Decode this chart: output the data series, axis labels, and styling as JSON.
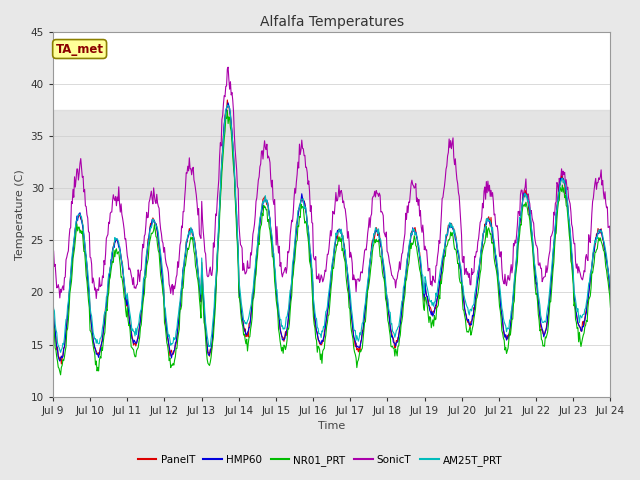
{
  "title": "Alfalfa Temperatures",
  "xlabel": "Time",
  "ylabel": "Temperature (C)",
  "ylim": [
    10,
    45
  ],
  "xlim": [
    0,
    15
  ],
  "x_tick_labels": [
    "Jul 9",
    "Jul 10",
    "Jul 11",
    "Jul 12",
    "Jul 13",
    "Jul 14",
    "Jul 15",
    "Jul 16",
    "Jul 17",
    "Jul 18",
    "Jul 19",
    "Jul 20",
    "Jul 21",
    "Jul 22",
    "Jul 23",
    "Jul 24"
  ],
  "shaded_bands": [
    {
      "ymin": 29.0,
      "ymax": 37.5,
      "color": "#d3d3d3",
      "alpha": 0.6
    }
  ],
  "annotation": "TA_met",
  "annotation_color": "#8B0000",
  "annotation_bg": "#FFFF99",
  "annotation_border": "#8B8000",
  "series": [
    {
      "name": "PanelT",
      "color": "#DD0000"
    },
    {
      "name": "HMP60",
      "color": "#0000DD"
    },
    {
      "name": "NR01_PRT",
      "color": "#00BB00"
    },
    {
      "name": "SonicT",
      "color": "#AA00AA"
    },
    {
      "name": "AM25T_PRT",
      "color": "#00BBBB"
    }
  ],
  "background_color": "#e8e8e8",
  "plot_bg_color": "#ffffff",
  "figwidth": 6.4,
  "figheight": 4.8,
  "dpi": 100
}
